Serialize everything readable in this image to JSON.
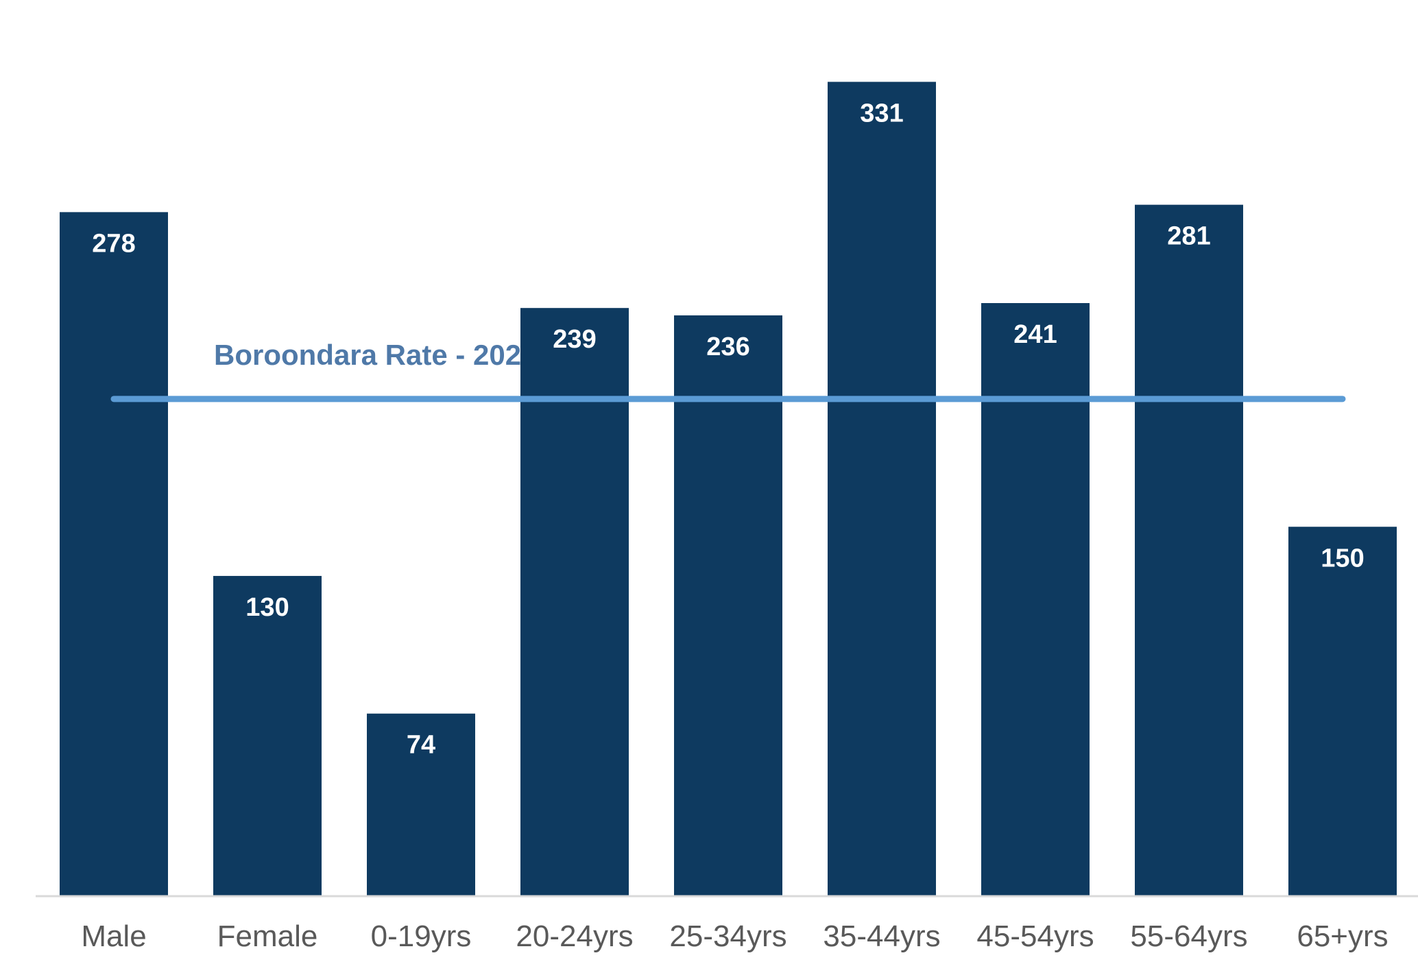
{
  "colors": {
    "bar": "#0e3a60",
    "reference_line": "#5b9bd5",
    "reference_label": "#4f79a8",
    "axis": "#d9d9d9",
    "tick_label": "#595959",
    "data_label": "#ffffff",
    "background": "#ffffff"
  },
  "chart_data": {
    "type": "bar",
    "title": "",
    "xlabel": "",
    "ylabel": "",
    "categories": [
      "Male",
      "Female",
      "0-19yrs",
      "20-24yrs",
      "25-34yrs",
      "35-44yrs",
      "45-54yrs",
      "55-64yrs",
      "65+yrs"
    ],
    "values": [
      278,
      130,
      74,
      239,
      236,
      331,
      241,
      281,
      150
    ],
    "data_labels": [
      "278",
      "130",
      "74",
      "239",
      "236",
      "331",
      "241",
      "281",
      "150"
    ],
    "ylim": [
      0,
      370
    ],
    "grid": false,
    "legend": "none",
    "reference_line": {
      "value": 202,
      "label": "Boroondara Rate - 202"
    }
  }
}
